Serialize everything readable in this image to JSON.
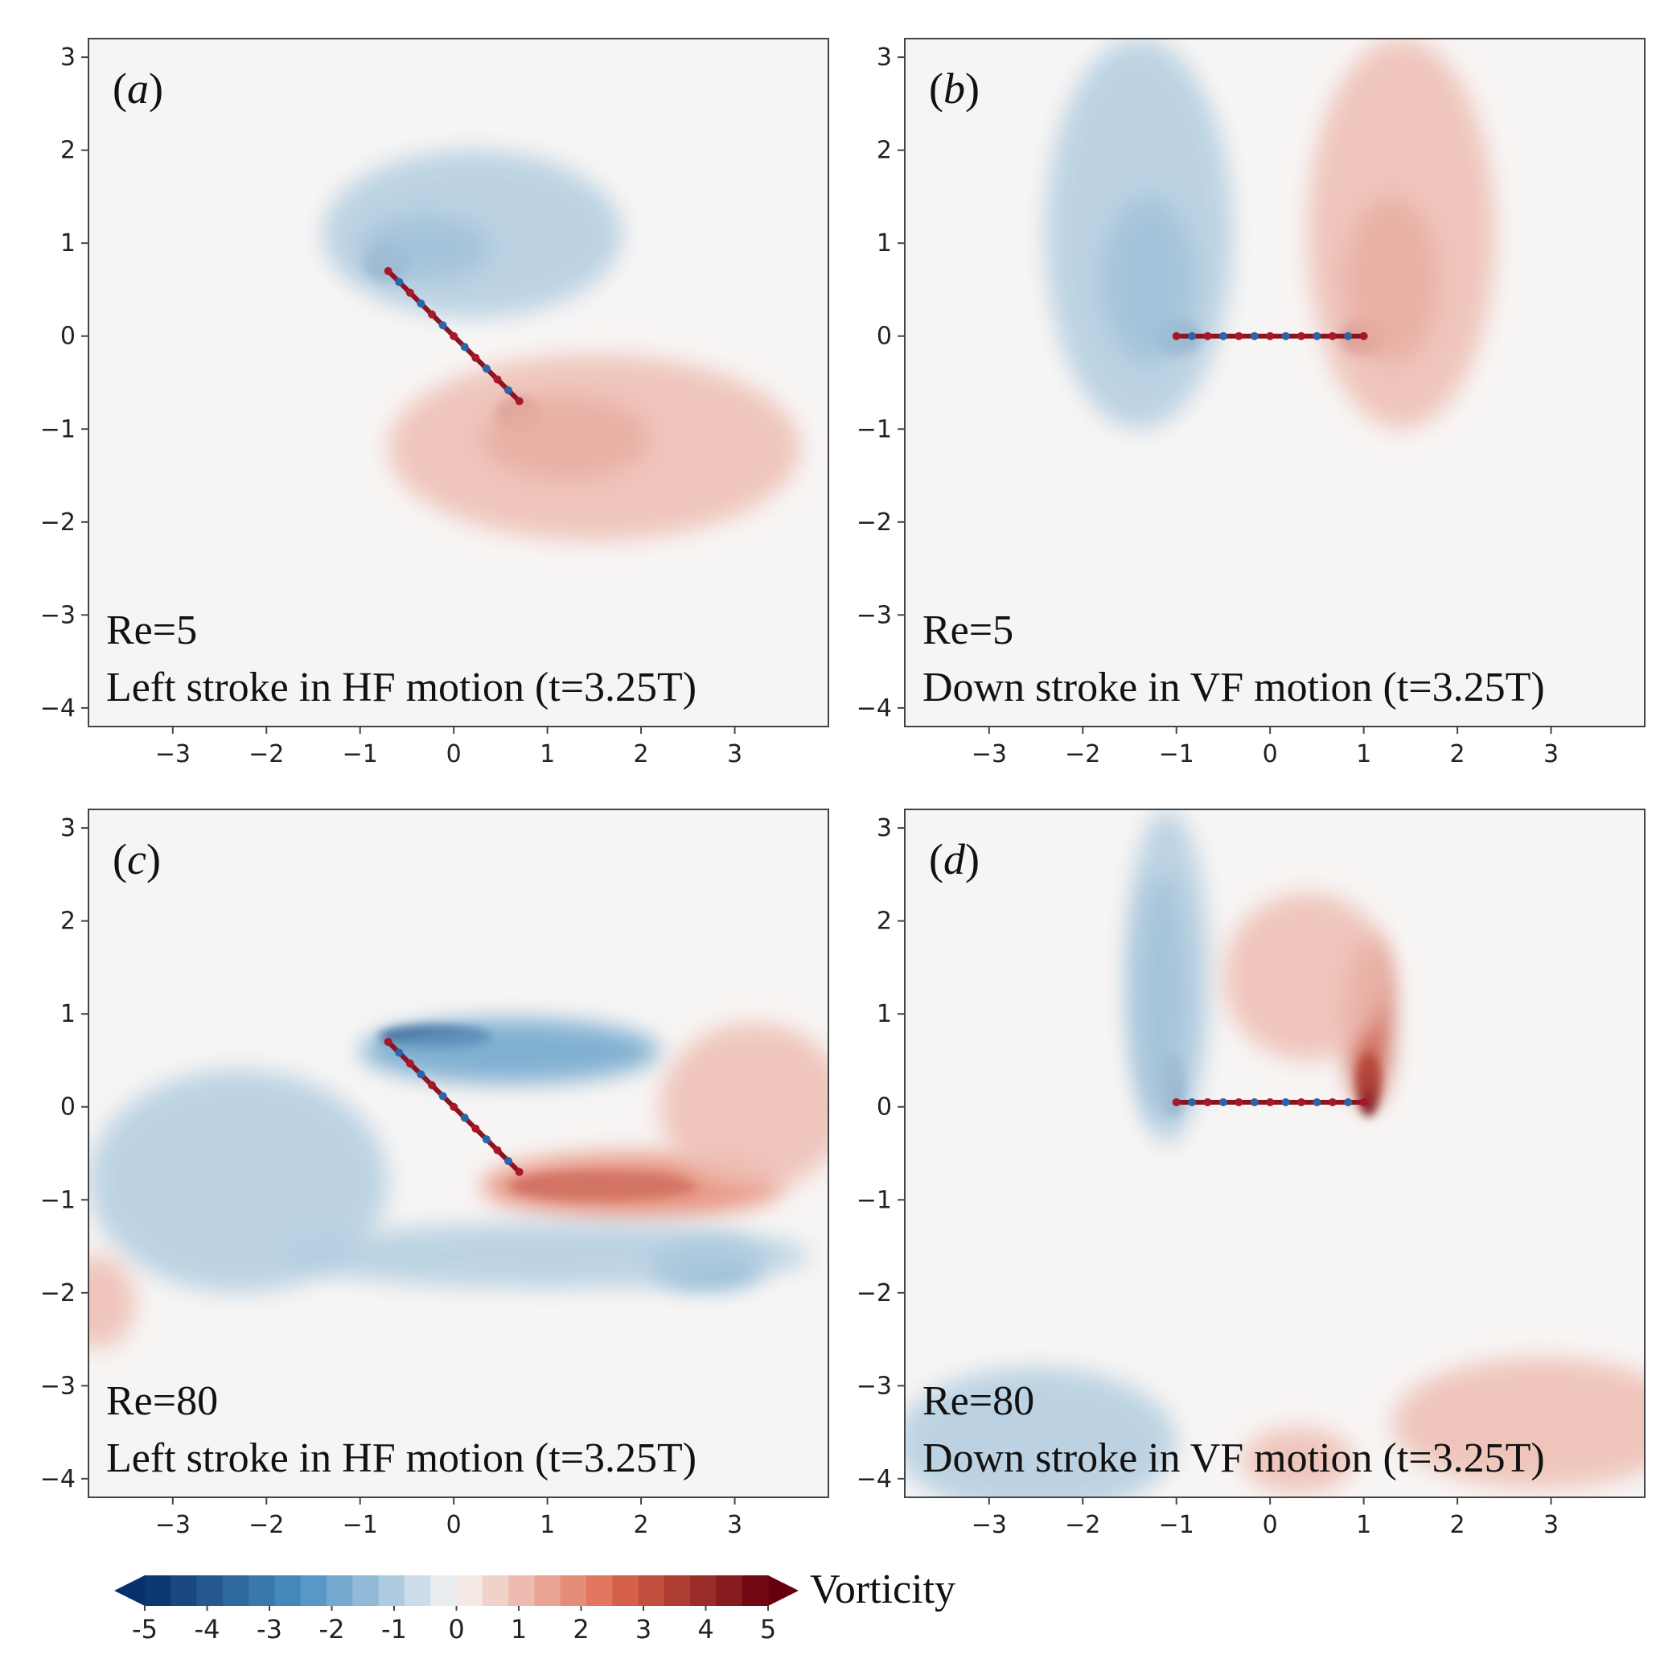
{
  "chart_data": [
    {
      "type": "heatmap",
      "panel": "(a)",
      "panel_letter": "a",
      "annotation_line1": "Re=5",
      "annotation_line2": "Left stroke in HF motion (t=3.25T)",
      "xlim": [
        -3.9,
        4.0
      ],
      "ylim": [
        -4.2,
        3.2
      ],
      "xticks": [
        -3,
        -2,
        -1,
        0,
        1,
        2,
        3
      ],
      "yticks": [
        3,
        2,
        1,
        0,
        -1,
        -2,
        -3,
        -4
      ],
      "plate": {
        "x1": -0.7,
        "y1": 0.7,
        "x2": 0.7,
        "y2": -0.7
      },
      "blobs": [
        {
          "x": -0.7,
          "y": 0.8,
          "rx": 0.25,
          "ry": 0.2,
          "vorticity": -5
        },
        {
          "x": -0.3,
          "y": 0.95,
          "rx": 0.7,
          "ry": 0.35,
          "vorticity": -3
        },
        {
          "x": 0.2,
          "y": 1.1,
          "rx": 1.6,
          "ry": 0.9,
          "vorticity": -1
        },
        {
          "x": 0.7,
          "y": -0.85,
          "rx": 0.25,
          "ry": 0.2,
          "vorticity": 5
        },
        {
          "x": 1.2,
          "y": -1.1,
          "rx": 0.9,
          "ry": 0.45,
          "vorticity": 3
        },
        {
          "x": 1.5,
          "y": -1.2,
          "rx": 2.2,
          "ry": 1.0,
          "vorticity": 1
        }
      ]
    },
    {
      "type": "heatmap",
      "panel": "(b)",
      "panel_letter": "b",
      "annotation_line1": "Re=5",
      "annotation_line2": "Down stroke in VF motion (t=3.25T)",
      "xlim": [
        -3.9,
        4.0
      ],
      "ylim": [
        -4.2,
        3.2
      ],
      "xticks": [
        -3,
        -2,
        -1,
        0,
        1,
        2,
        3
      ],
      "yticks": [
        3,
        2,
        1,
        0,
        -1,
        -2,
        -3,
        -4
      ],
      "plate": {
        "x1": -1.0,
        "y1": 0.0,
        "x2": 1.0,
        "y2": 0.0
      },
      "blobs": [
        {
          "x": -1.0,
          "y": 0.0,
          "rx": 0.25,
          "ry": 0.2,
          "vorticity": -5
        },
        {
          "x": -1.3,
          "y": 0.6,
          "rx": 0.5,
          "ry": 0.9,
          "vorticity": -3
        },
        {
          "x": -1.4,
          "y": 1.1,
          "rx": 1.0,
          "ry": 2.1,
          "vorticity": -1
        },
        {
          "x": 1.0,
          "y": 0.0,
          "rx": 0.25,
          "ry": 0.2,
          "vorticity": 5
        },
        {
          "x": 1.3,
          "y": 0.6,
          "rx": 0.5,
          "ry": 0.9,
          "vorticity": 3
        },
        {
          "x": 1.4,
          "y": 1.1,
          "rx": 1.0,
          "ry": 2.1,
          "vorticity": 1
        }
      ]
    },
    {
      "type": "heatmap",
      "panel": "(c)",
      "panel_letter": "c",
      "annotation_line1": "Re=80",
      "annotation_line2": "Left stroke in HF motion (t=3.25T)",
      "xlim": [
        -3.9,
        4.0
      ],
      "ylim": [
        -4.2,
        3.2
      ],
      "xticks": [
        -3,
        -2,
        -1,
        0,
        1,
        2,
        3
      ],
      "yticks": [
        3,
        2,
        1,
        0,
        -1,
        -2,
        -3,
        -4
      ],
      "plate": {
        "x1": -0.7,
        "y1": 0.7,
        "x2": 0.7,
        "y2": -0.7
      },
      "blobs": [
        {
          "x": -0.2,
          "y": 0.75,
          "rx": 0.6,
          "ry": 0.12,
          "vorticity": -5
        },
        {
          "x": 0.6,
          "y": 0.6,
          "rx": 1.6,
          "ry": 0.35,
          "vorticity": -2
        },
        {
          "x": 1.6,
          "y": -0.85,
          "rx": 1.0,
          "ry": 0.15,
          "vorticity": 5
        },
        {
          "x": 1.9,
          "y": -0.85,
          "rx": 1.6,
          "ry": 0.35,
          "vorticity": 2
        },
        {
          "x": 2.7,
          "y": -1.7,
          "rx": 0.6,
          "ry": 0.25,
          "vorticity": -2
        },
        {
          "x": 1.0,
          "y": -1.6,
          "rx": 2.8,
          "ry": 0.35,
          "vorticity": -1
        },
        {
          "x": -2.3,
          "y": -0.8,
          "rx": 1.6,
          "ry": 1.2,
          "vorticity": -1
        },
        {
          "x": 3.2,
          "y": 0.0,
          "rx": 1.0,
          "ry": 0.9,
          "vorticity": 1
        },
        {
          "x": -3.8,
          "y": -2.1,
          "rx": 0.4,
          "ry": 0.5,
          "vorticity": 1
        }
      ]
    },
    {
      "type": "heatmap",
      "panel": "(d)",
      "panel_letter": "d",
      "annotation_line1": "Re=80",
      "annotation_line2": "Down stroke in VF motion (t=3.25T)",
      "xlim": [
        -3.9,
        4.0
      ],
      "ylim": [
        -4.2,
        3.2
      ],
      "xticks": [
        -3,
        -2,
        -1,
        0,
        1,
        2,
        3
      ],
      "yticks": [
        3,
        2,
        1,
        0,
        -1,
        -2,
        -3,
        -4
      ],
      "plate": {
        "x1": -1.0,
        "y1": 0.05,
        "x2": 1.0,
        "y2": 0.05
      },
      "blobs": [
        {
          "x": -1.05,
          "y": 0.25,
          "rx": 0.12,
          "ry": 0.35,
          "vorticity": -5
        },
        {
          "x": -1.15,
          "y": 1.2,
          "rx": 0.25,
          "ry": 1.3,
          "vorticity": -3
        },
        {
          "x": -1.1,
          "y": 1.4,
          "rx": 0.45,
          "ry": 1.8,
          "vorticity": -1
        },
        {
          "x": 1.05,
          "y": 0.25,
          "rx": 0.12,
          "ry": 0.35,
          "vorticity": 5
        },
        {
          "x": 1.05,
          "y": 0.9,
          "rx": 0.25,
          "ry": 0.9,
          "vorticity": 3
        },
        {
          "x": 0.4,
          "y": 1.4,
          "rx": 0.9,
          "ry": 0.9,
          "vorticity": 1
        },
        {
          "x": -2.5,
          "y": -3.6,
          "rx": 1.5,
          "ry": 0.8,
          "vorticity": -1
        },
        {
          "x": 2.9,
          "y": -3.4,
          "rx": 1.6,
          "ry": 0.7,
          "vorticity": 1
        },
        {
          "x": 0.3,
          "y": -3.8,
          "rx": 0.6,
          "ry": 0.35,
          "vorticity": 1
        }
      ]
    }
  ],
  "colorbar": {
    "label": "Vorticity",
    "min": -5,
    "max": 5,
    "ticks": [
      "-5",
      "-4",
      "-3",
      "-2",
      "-1",
      "0",
      "1",
      "2",
      "3",
      "4",
      "5"
    ],
    "levels": 24,
    "extend": "both"
  },
  "colors": {
    "neg_strong": "#08306b",
    "neg_mid": "#4a90c2",
    "neutral": "#f7f5f4",
    "pos_mid": "#e06a50",
    "pos_strong": "#67000d"
  }
}
